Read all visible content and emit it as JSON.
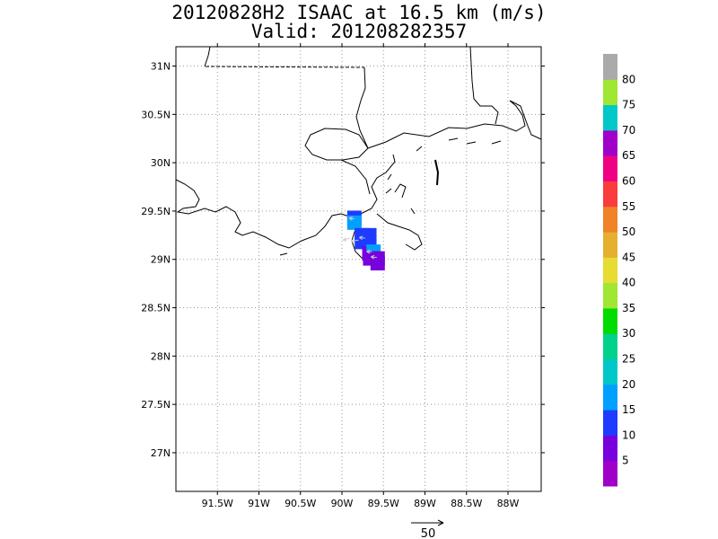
{
  "title": {
    "line1": "20120828H2 ISAAC at 16.5 km (m/s)",
    "line2": "Valid: 201208282357"
  },
  "map": {
    "lon_range": [
      -92.0,
      -87.6
    ],
    "lat_range": [
      26.6,
      31.2
    ],
    "lat_ticks": [
      {
        "v": 31.0,
        "label": "31N"
      },
      {
        "v": 30.5,
        "label": "30.5N"
      },
      {
        "v": 30.0,
        "label": "30N"
      },
      {
        "v": 29.5,
        "label": "29.5N"
      },
      {
        "v": 29.0,
        "label": "29N"
      },
      {
        "v": 28.5,
        "label": "28.5N"
      },
      {
        "v": 28.0,
        "label": "28N"
      },
      {
        "v": 27.5,
        "label": "27.5N"
      },
      {
        "v": 27.0,
        "label": "27N"
      }
    ],
    "lon_ticks": [
      {
        "v": -91.5,
        "label": "91.5W"
      },
      {
        "v": -91.0,
        "label": "91W"
      },
      {
        "v": -90.5,
        "label": "90.5W"
      },
      {
        "v": -90.0,
        "label": "90W"
      },
      {
        "v": -89.5,
        "label": "89.5W"
      },
      {
        "v": -89.0,
        "label": "89W"
      },
      {
        "v": -88.5,
        "label": "88.5W"
      },
      {
        "v": -88.0,
        "label": "88W"
      }
    ],
    "grid": true
  },
  "colorbar": {
    "colors": [
      "#a000c8",
      "#7800dc",
      "#1e3cff",
      "#00a0ff",
      "#00c8c8",
      "#00d28c",
      "#00dc00",
      "#a0e632",
      "#e6dc32",
      "#e6af2d",
      "#f08228",
      "#fa3c3c",
      "#f00082",
      "#a000c8",
      "#00c8c8",
      "#a0e632",
      "#aaaaaa"
    ],
    "labels": [
      "5",
      "10",
      "15",
      "20",
      "25",
      "30",
      "35",
      "40",
      "45",
      "50",
      "55",
      "60",
      "65",
      "70",
      "75",
      "80"
    ]
  },
  "cells": [
    {
      "lon": -89.85,
      "lat": 29.43,
      "color": "#1e3cff"
    },
    {
      "lon": -89.85,
      "lat": 29.38,
      "color": "#00a0ff"
    },
    {
      "lon": -89.76,
      "lat": 29.25,
      "color": "#1e3cff"
    },
    {
      "lon": -89.76,
      "lat": 29.18,
      "color": "#1e3cff"
    },
    {
      "lon": -89.67,
      "lat": 29.25,
      "color": "#1e3cff"
    },
    {
      "lon": -89.67,
      "lat": 29.18,
      "color": "#1e3cff"
    },
    {
      "lon": -89.67,
      "lat": 29.06,
      "color": "#7800dc"
    },
    {
      "lon": -89.62,
      "lat": 29.08,
      "color": "#00a0ff"
    },
    {
      "lon": -89.57,
      "lat": 29.01,
      "color": "#7800dc"
    },
    {
      "lon": -89.57,
      "lat": 28.96,
      "color": "#7800dc"
    },
    {
      "lon": -89.66,
      "lat": 29.01,
      "color": "#7800dc"
    }
  ],
  "vectors": [
    {
      "lon": -89.85,
      "lat": 29.42,
      "u": -8,
      "v": 1
    },
    {
      "lon": -89.8,
      "lat": 29.2,
      "u": -12,
      "v": -2
    },
    {
      "lon": -89.72,
      "lat": 29.22,
      "u": -9,
      "v": 1
    },
    {
      "lon": -89.64,
      "lat": 29.08,
      "u": -8,
      "v": 0
    },
    {
      "lon": -89.58,
      "lat": 29.02,
      "u": -9,
      "v": 1
    },
    {
      "lon": -89.9,
      "lat": 29.22,
      "u": -11,
      "v": -3
    }
  ],
  "reference_vector": {
    "label": "50",
    "value": 50
  }
}
